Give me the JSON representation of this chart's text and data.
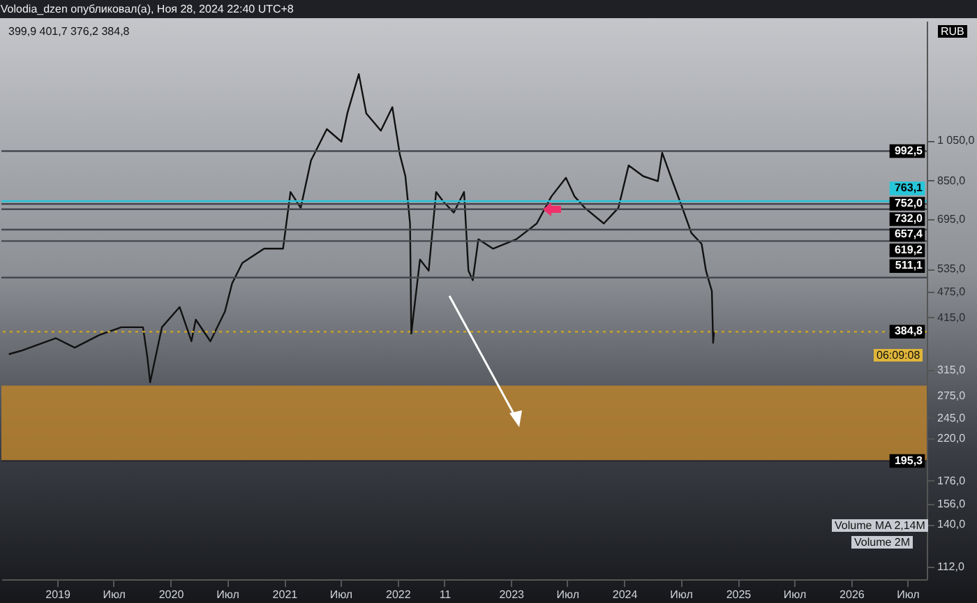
{
  "chart_data": {
    "type": "line",
    "title": "Volodia_dzen опубликовал(а), Ноя 28, 2024 22:40 UTC+8",
    "x": [
      "2018-07-29",
      "2018-09-05",
      "2018-12-27",
      "2019-02-26",
      "2019-05-16",
      "2019-07-26",
      "2019-10-04",
      "2019-10-18",
      "2019-10-27",
      "2019-12-04",
      "2020-01-30",
      "2020-03-08",
      "2020-03-22",
      "2020-05-08",
      "2020-06-24",
      "2020-07-17",
      "2020-08-19",
      "2020-10-28",
      "2020-12-28",
      "2021-01-21",
      "2021-02-23",
      "2021-03-28",
      "2021-05-18",
      "2021-07-04",
      "2021-07-23",
      "2021-08-29",
      "2021-09-22",
      "2021-11-08",
      "2021-12-15",
      "2022-01-08",
      "2022-01-26",
      "2022-02-10",
      "2022-02-14",
      "2022-03-14",
      "2022-04-11",
      "2022-05-05",
      "2022-05-28",
      "2022-07-01",
      "2022-08-03",
      "2022-08-17",
      "2022-08-31",
      "2022-09-18",
      "2022-11-04",
      "2023-01-18",
      "2023-03-25",
      "2023-05-11",
      "2023-06-27",
      "2023-07-25",
      "2023-08-27",
      "2023-10-27",
      "2023-12-13",
      "2024-01-15",
      "2024-03-02",
      "2024-04-18",
      "2024-05-02",
      "2024-06-04",
      "2024-07-06",
      "2024-08-04",
      "2024-09-06",
      "2024-09-20",
      "2024-10-09",
      "2024-10-13",
      "2024-10-16"
    ],
    "series": [
      {
        "color": "#111111",
        "values": [
          342,
          348,
          372,
          354,
          378,
          394,
          394,
          337,
          295,
          394,
          438,
          366,
          410,
          366,
          428,
          496,
          552,
          595,
          595,
          801,
          737,
          945,
          1114,
          1043,
          1210,
          1487,
          1210,
          1105,
          1250,
          976,
          870,
          679,
          381,
          562,
          530,
          801,
          762,
          719,
          801,
          530,
          504,
          625,
          595,
          625,
          679,
          782,
          863,
          782,
          737,
          679,
          737,
          921,
          870,
          848,
          984,
          848,
          737,
          646,
          610,
          530,
          476,
          363,
          384.8
        ]
      }
    ],
    "ylim": [
      105,
      1965
    ],
    "log": true,
    "yticks": [
      {
        "value": 112,
        "label": "112,0"
      },
      {
        "value": 140,
        "label": "140,0"
      },
      {
        "value": 156,
        "label": "156,0"
      },
      {
        "value": 176,
        "label": "176,0"
      },
      {
        "value": 220,
        "label": "220,0"
      },
      {
        "value": 245,
        "label": "245,0"
      },
      {
        "value": 275,
        "label": "275,0"
      },
      {
        "value": 315,
        "label": "315,0"
      },
      {
        "value": 415,
        "label": "415,0"
      },
      {
        "value": 475,
        "label": "475,0"
      },
      {
        "value": 535,
        "label": "535,0"
      },
      {
        "value": 695,
        "label": "695,0"
      },
      {
        "value": 850,
        "label": "850,0"
      },
      {
        "value": 1050,
        "label": "1 050,0"
      }
    ],
    "xlim": [
      "2018-07-05",
      "2026-09-01"
    ],
    "xticks": [
      {
        "value": "2019-01-01",
        "label": "2019"
      },
      {
        "value": "2019-07-01",
        "label": "Июл"
      },
      {
        "value": "2020-01-01",
        "label": "2020"
      },
      {
        "value": "2020-07-01",
        "label": "Июл"
      },
      {
        "value": "2021-01-01",
        "label": "2021"
      },
      {
        "value": "2021-07-01",
        "label": "Июл"
      },
      {
        "value": "2022-01-01",
        "label": "2022"
      },
      {
        "value": "2022-06-01",
        "label": "11"
      },
      {
        "value": "2023-01-01",
        "label": "2023"
      },
      {
        "value": "2023-07-01",
        "label": "Июл"
      },
      {
        "value": "2024-01-01",
        "label": "2024"
      },
      {
        "value": "2024-07-01",
        "label": "Июл"
      },
      {
        "value": "2025-01-01",
        "label": "2025"
      },
      {
        "value": "2025-07-01",
        "label": "Июл"
      },
      {
        "value": "2026-01-01",
        "label": "2026"
      },
      {
        "value": "2026-07-01",
        "label": "Июл"
      }
    ],
    "grid": false,
    "marker": "none",
    "line_style": "solid",
    "ref_lines": [
      {
        "axis": "y",
        "value": 992.5,
        "label": "992,5",
        "color": "#45484e"
      },
      {
        "axis": "y",
        "value": 763.1,
        "label": "763,1",
        "color": "#26c6da"
      },
      {
        "axis": "y",
        "value": 752.0,
        "label": "752,0",
        "color": "#45484e"
      },
      {
        "axis": "y",
        "value": 732.0,
        "label": "732,0",
        "color": "#45484e"
      },
      {
        "axis": "y",
        "value": 657.4,
        "label": "657,4",
        "color": "#45484e"
      },
      {
        "axis": "y",
        "value": 619.2,
        "label": "619,2",
        "color": "#45484e"
      },
      {
        "axis": "y",
        "value": 511.1,
        "label": "511,1",
        "color": "#45484e"
      },
      {
        "axis": "y",
        "value": 384.8,
        "label": "384,8",
        "color": "#c9a227",
        "line_style": "dotted"
      },
      {
        "axis": "y",
        "value": 195.3,
        "label": "195,3",
        "color": "#2a2c30"
      }
    ],
    "bands": [
      {
        "axis": "y",
        "from": 195.3,
        "to": 290,
        "color": "#b8832f"
      }
    ],
    "annotations": [
      "399,9   401,7   376,2   384,8",
      "06:09:08",
      "Volume MA 2,14M",
      "Volume 2M",
      "RUB"
    ]
  }
}
